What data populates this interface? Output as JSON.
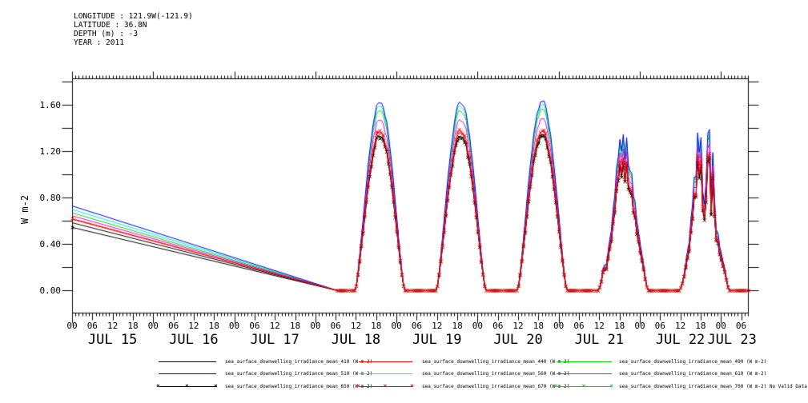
{
  "header": {
    "lines": [
      "LONGITUDE : 121.9W(-121.9)",
      "LATITUDE : 36.8N",
      "DEPTH (m) : -3",
      "YEAR : 2011"
    ]
  },
  "chart_data": {
    "type": "line",
    "title": "",
    "xlabel": "",
    "ylabel": "W m-2",
    "grid": false,
    "y_axis": {
      "labeled_ticks": [
        0.0,
        0.4,
        0.8,
        1.2,
        1.6
      ],
      "labels": [
        "0.00",
        "0.40",
        "0.80",
        "1.20",
        "1.60"
      ],
      "minor_step": 0.2,
      "range": [
        -0.19,
        1.83
      ]
    },
    "x_axis": {
      "start": "JUL 15 00:00",
      "total_hours": 200,
      "hour_labels": [
        {
          "t": 0,
          "label": "00"
        },
        {
          "t": 6,
          "label": "06"
        },
        {
          "t": 12,
          "label": "12"
        },
        {
          "t": 18,
          "label": "18"
        },
        {
          "t": 24,
          "label": "00"
        },
        {
          "t": 30,
          "label": "06"
        },
        {
          "t": 36,
          "label": "12"
        },
        {
          "t": 42,
          "label": "18"
        },
        {
          "t": 48,
          "label": "00"
        },
        {
          "t": 54,
          "label": "06"
        },
        {
          "t": 60,
          "label": "12"
        },
        {
          "t": 66,
          "label": "18"
        },
        {
          "t": 72,
          "label": "00"
        },
        {
          "t": 78,
          "label": "06"
        },
        {
          "t": 84,
          "label": "12"
        },
        {
          "t": 90,
          "label": "18"
        },
        {
          "t": 96,
          "label": "00"
        },
        {
          "t": 102,
          "label": "06"
        },
        {
          "t": 108,
          "label": "12"
        },
        {
          "t": 114,
          "label": "18"
        },
        {
          "t": 120,
          "label": "00"
        },
        {
          "t": 126,
          "label": "06"
        },
        {
          "t": 132,
          "label": "12"
        },
        {
          "t": 138,
          "label": "18"
        },
        {
          "t": 144,
          "label": "00"
        },
        {
          "t": 150,
          "label": "06"
        },
        {
          "t": 156,
          "label": "12"
        },
        {
          "t": 162,
          "label": "18"
        },
        {
          "t": 168,
          "label": "00"
        },
        {
          "t": 174,
          "label": "06"
        },
        {
          "t": 180,
          "label": "12"
        },
        {
          "t": 186,
          "label": "18"
        },
        {
          "t": 192,
          "label": "00"
        },
        {
          "t": 198,
          "label": "06"
        }
      ],
      "day_labels": [
        {
          "t": 12,
          "label": "JUL 15"
        },
        {
          "t": 36,
          "label": "JUL 16"
        },
        {
          "t": 60,
          "label": "JUL 17"
        },
        {
          "t": 84,
          "label": "JUL 18"
        },
        {
          "t": 108,
          "label": "JUL 19"
        },
        {
          "t": 132,
          "label": "JUL 20"
        },
        {
          "t": 156,
          "label": "JUL 21"
        },
        {
          "t": 180,
          "label": "JUL 22"
        },
        {
          "t": 195.3,
          "label": "JUL 23"
        }
      ]
    },
    "solar_model": {
      "gap_segment": "straight decline from initial values at JUL 15 00:00 reaching 0 at hour 78.5 (JUL 18 ~06:30)",
      "zero_reach_hour": 78.5,
      "sunrise_local_h": 11.7,
      "sunset_local_h": 26.3,
      "solar_noon_h": 19.0,
      "shape_exponent": 1.3
    },
    "cloud_envelopes": {
      "JUL 18": {
        "base": 1.0,
        "jitter": 0.012
      },
      "JUL 19": {
        "base": 1.0,
        "jitter": 0.012
      },
      "JUL 20": {
        "base": 1.0,
        "jitter": 0.012
      },
      "JUL 21": {
        "jitter": 0.05,
        "anchors": [
          [
            11.7,
            0.85
          ],
          [
            12.5,
            0.55
          ],
          [
            13.2,
            0.62
          ],
          [
            13.8,
            0.35
          ],
          [
            14.5,
            0.42
          ],
          [
            15.5,
            0.5
          ],
          [
            16.5,
            0.62
          ],
          [
            17.3,
            0.75
          ],
          [
            18.0,
            0.8
          ],
          [
            18.6,
            0.72
          ],
          [
            19.0,
            0.8
          ],
          [
            19.5,
            0.74
          ],
          [
            20.0,
            0.8
          ],
          [
            20.6,
            0.68
          ],
          [
            21.2,
            0.74
          ],
          [
            22.0,
            0.7
          ],
          [
            23.0,
            0.66
          ],
          [
            24.0,
            0.68
          ],
          [
            25.0,
            0.72
          ],
          [
            26.3,
            0.78
          ]
        ]
      },
      "JUL 22": {
        "jitter": 0.1,
        "anchors": [
          [
            11.7,
            0.8
          ],
          [
            12.3,
            0.45
          ],
          [
            12.8,
            0.55
          ],
          [
            13.3,
            0.4
          ],
          [
            13.8,
            0.62
          ],
          [
            14.3,
            0.45
          ],
          [
            14.8,
            0.7
          ],
          [
            15.3,
            0.55
          ],
          [
            15.8,
            0.9
          ],
          [
            16.3,
            0.65
          ],
          [
            16.8,
            1.0
          ],
          [
            17.3,
            0.7
          ],
          [
            17.8,
            0.95
          ],
          [
            18.4,
            0.55
          ],
          [
            19.0,
            0.42
          ],
          [
            19.4,
            0.5
          ],
          [
            19.9,
            1.0
          ],
          [
            20.2,
            0.65
          ],
          [
            20.6,
            1.0
          ],
          [
            21.0,
            0.6
          ],
          [
            21.5,
            0.85
          ],
          [
            22.2,
            0.55
          ],
          [
            23.0,
            0.5
          ],
          [
            24.0,
            0.55
          ],
          [
            25.0,
            0.6
          ],
          [
            26.3,
            0.7
          ]
        ]
      }
    },
    "series": [
      {
        "name": "sea_surface_downwelling_irradiance_mean_410",
        "units": "W m-2",
        "color": "#000000",
        "marker": false,
        "start_value": 0.585,
        "clear_sky_peak": 1.34
      },
      {
        "name": "sea_surface_downwelling_irradiance_mean_440",
        "units": "W m-2",
        "color": "#ff0000",
        "marker": false,
        "start_value": 0.615,
        "clear_sky_peak": 1.37
      },
      {
        "name": "sea_surface_downwelling_irradiance_mean_490",
        "units": "W m-2",
        "color": "#00dd00",
        "marker": false,
        "start_value": 0.67,
        "clear_sky_peak": 1.56
      },
      {
        "name": "sea_surface_downwelling_irradiance_mean_510",
        "units": "W m-2",
        "color": "#0000dd",
        "marker": false,
        "start_value": 0.73,
        "clear_sky_peak": 1.63
      },
      {
        "name": "sea_surface_downwelling_irradiance_mean_560",
        "units": "W m-2",
        "color": "#00e8e8",
        "marker": false,
        "start_value": 0.7,
        "clear_sky_peak": 1.6
      },
      {
        "name": "sea_surface_downwelling_irradiance_mean_610",
        "units": "W m-2",
        "color": "#ee00ee",
        "marker": false,
        "start_value": 0.645,
        "clear_sky_peak": 1.48
      },
      {
        "name": "sea_surface_downwelling_irradiance_mean_650",
        "units": "W m-2",
        "color": "#000000",
        "marker": true,
        "start_value": 0.545,
        "clear_sky_peak": 1.33
      },
      {
        "name": "sea_surface_downwelling_irradiance_mean_670",
        "units": "W m-2",
        "color": "#ff0000",
        "marker": true,
        "start_value": 0.62,
        "clear_sky_peak": 1.38
      },
      {
        "name": "sea_surface_downwelling_irradiance_mean_700",
        "units": "W m-2",
        "color": "#00dd00",
        "marker": true,
        "no_data": true
      }
    ]
  },
  "legend": {
    "rows": [
      [
        {
          "label": "sea_surface_downwelling_irradiance_mean_410 (W m-2)",
          "color": "#000000",
          "marker": false
        },
        {
          "label": "sea_surface_downwelling_irradiance_mean_440 (W m-2)",
          "color": "#ff0000",
          "marker": false
        },
        {
          "label": "sea_surface_downwelling_irradiance_mean_490 (W m-2)",
          "color": "#00dd00",
          "marker": false
        }
      ],
      [
        {
          "label": "sea_surface_downwelling_irradiance_mean_510 (W m-2)",
          "color": "#0000dd",
          "marker": false
        },
        {
          "label": "sea_surface_downwelling_irradiance_mean_560 (W m-2)",
          "color": "#00e8e8",
          "marker": false
        },
        {
          "label": "sea_surface_downwelling_irradiance_mean_610 (W m-2)",
          "color": "#ee00ee",
          "marker": false
        }
      ],
      [
        {
          "label": "sea_surface_downwelling_irradiance_mean_650 (W m-2)",
          "color": "#000000",
          "marker": true
        },
        {
          "label": "sea_surface_downwelling_irradiance_mean_670 (W m-2)",
          "color": "#ff0000",
          "marker": true
        },
        {
          "label": "sea_surface_downwelling_irradiance_mean_700 (W m-2) No Valid Data",
          "color": "#00dd00",
          "marker": true
        }
      ]
    ]
  }
}
